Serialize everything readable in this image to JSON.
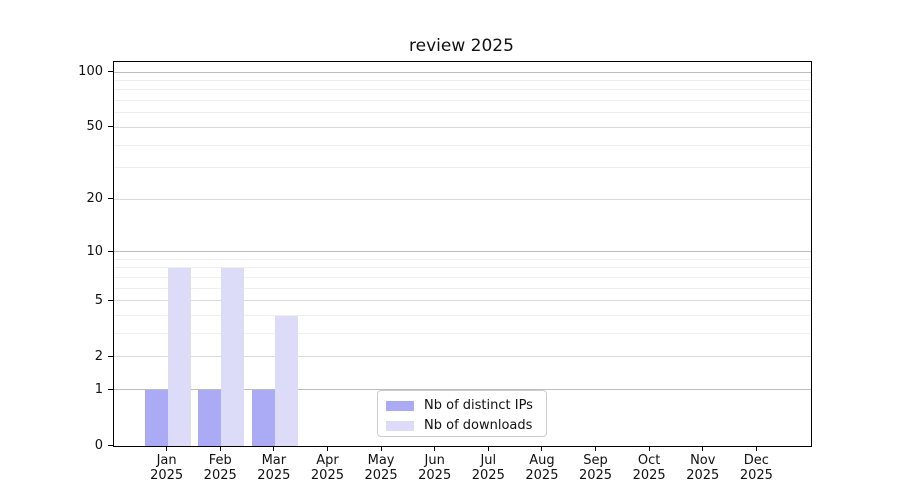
{
  "title": "review 2025",
  "chart_data": {
    "type": "bar",
    "title": "review 2025",
    "categories": [
      "Jan",
      "Feb",
      "Mar",
      "Apr",
      "May",
      "Jun",
      "Jul",
      "Aug",
      "Sep",
      "Oct",
      "Nov",
      "Dec"
    ],
    "category_year": "2025",
    "series": [
      {
        "name": "Nb of distinct IPs",
        "color": "#ababf5",
        "values": [
          1,
          1,
          1,
          0,
          0,
          0,
          0,
          0,
          0,
          0,
          0,
          0
        ]
      },
      {
        "name": "Nb of downloads",
        "color": "#dcdcf8",
        "values": [
          8,
          8,
          4,
          0,
          0,
          0,
          0,
          0,
          0,
          0,
          0,
          0
        ]
      }
    ],
    "yscale": "log1p",
    "yticks": [
      0,
      1,
      2,
      5,
      10,
      20,
      50,
      100
    ],
    "ytick_labels": [
      "0",
      "1",
      "2",
      "5",
      "10",
      "20",
      "50",
      "100"
    ],
    "minor_yticks": [
      3,
      4,
      6,
      7,
      8,
      9,
      30,
      40,
      60,
      70,
      80,
      90
    ],
    "ylim": [
      0,
      112
    ],
    "xlabel": "",
    "ylabel": "",
    "grid": "horizontal",
    "legend_position": "lower center",
    "colors": {
      "axis": "#000000",
      "grid_major": "#bdbdbd",
      "grid_labeled": "#dadada",
      "grid_minor": "#efefef",
      "legend_border": "#cccccc",
      "background": "#ffffff"
    }
  }
}
